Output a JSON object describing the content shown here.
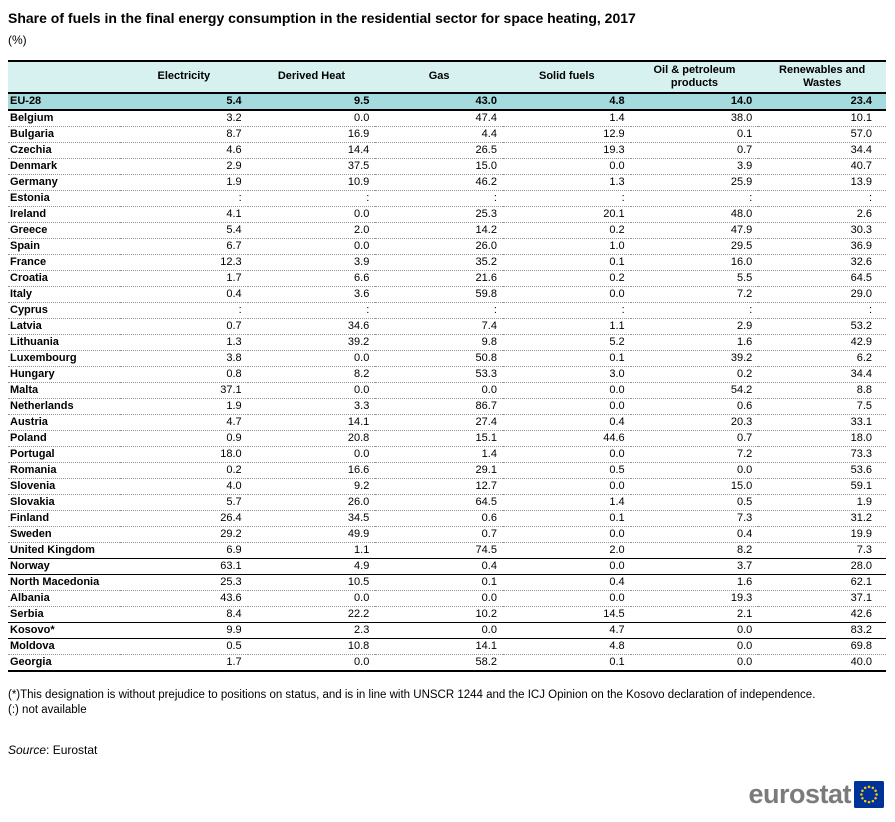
{
  "chart_data": {
    "type": "table",
    "title": "Share of fuels in the final energy consumption in the residential sector for space heating, 2017",
    "unit": "(%)",
    "columns": [
      "Electricity",
      "Derived Heat",
      "Gas",
      "Solid fuels",
      "Oil & petroleum products",
      "Renewables and Wastes"
    ],
    "highlight_row": "EU-28",
    "solid_separator_after": [
      "United Kingdom",
      "Norway",
      "Serbia",
      "Kosovo*"
    ],
    "not_available_symbol": ":",
    "rows": [
      {
        "name": "EU-28",
        "values": [
          "5.4",
          "9.5",
          "43.0",
          "4.8",
          "14.0",
          "23.4"
        ]
      },
      {
        "name": "Belgium",
        "values": [
          "3.2",
          "0.0",
          "47.4",
          "1.4",
          "38.0",
          "10.1"
        ]
      },
      {
        "name": "Bulgaria",
        "values": [
          "8.7",
          "16.9",
          "4.4",
          "12.9",
          "0.1",
          "57.0"
        ]
      },
      {
        "name": "Czechia",
        "values": [
          "4.6",
          "14.4",
          "26.5",
          "19.3",
          "0.7",
          "34.4"
        ]
      },
      {
        "name": "Denmark",
        "values": [
          "2.9",
          "37.5",
          "15.0",
          "0.0",
          "3.9",
          "40.7"
        ]
      },
      {
        "name": "Germany",
        "values": [
          "1.9",
          "10.9",
          "46.2",
          "1.3",
          "25.9",
          "13.9"
        ]
      },
      {
        "name": "Estonia",
        "values": [
          ":",
          ":",
          ":",
          ":",
          ":",
          ":"
        ]
      },
      {
        "name": "Ireland",
        "values": [
          "4.1",
          "0.0",
          "25.3",
          "20.1",
          "48.0",
          "2.6"
        ]
      },
      {
        "name": "Greece",
        "values": [
          "5.4",
          "2.0",
          "14.2",
          "0.2",
          "47.9",
          "30.3"
        ]
      },
      {
        "name": "Spain",
        "values": [
          "6.7",
          "0.0",
          "26.0",
          "1.0",
          "29.5",
          "36.9"
        ]
      },
      {
        "name": "France",
        "values": [
          "12.3",
          "3.9",
          "35.2",
          "0.1",
          "16.0",
          "32.6"
        ]
      },
      {
        "name": "Croatia",
        "values": [
          "1.7",
          "6.6",
          "21.6",
          "0.2",
          "5.5",
          "64.5"
        ]
      },
      {
        "name": "Italy",
        "values": [
          "0.4",
          "3.6",
          "59.8",
          "0.0",
          "7.2",
          "29.0"
        ]
      },
      {
        "name": "Cyprus",
        "values": [
          ":",
          ":",
          ":",
          ":",
          ":",
          ":"
        ]
      },
      {
        "name": "Latvia",
        "values": [
          "0.7",
          "34.6",
          "7.4",
          "1.1",
          "2.9",
          "53.2"
        ]
      },
      {
        "name": "Lithuania",
        "values": [
          "1.3",
          "39.2",
          "9.8",
          "5.2",
          "1.6",
          "42.9"
        ]
      },
      {
        "name": "Luxembourg",
        "values": [
          "3.8",
          "0.0",
          "50.8",
          "0.1",
          "39.2",
          "6.2"
        ]
      },
      {
        "name": "Hungary",
        "values": [
          "0.8",
          "8.2",
          "53.3",
          "3.0",
          "0.2",
          "34.4"
        ]
      },
      {
        "name": "Malta",
        "values": [
          "37.1",
          "0.0",
          "0.0",
          "0.0",
          "54.2",
          "8.8"
        ]
      },
      {
        "name": "Netherlands",
        "values": [
          "1.9",
          "3.3",
          "86.7",
          "0.0",
          "0.6",
          "7.5"
        ]
      },
      {
        "name": "Austria",
        "values": [
          "4.7",
          "14.1",
          "27.4",
          "0.4",
          "20.3",
          "33.1"
        ]
      },
      {
        "name": "Poland",
        "values": [
          "0.9",
          "20.8",
          "15.1",
          "44.6",
          "0.7",
          "18.0"
        ]
      },
      {
        "name": "Portugal",
        "values": [
          "18.0",
          "0.0",
          "1.4",
          "0.0",
          "7.2",
          "73.3"
        ]
      },
      {
        "name": "Romania",
        "values": [
          "0.2",
          "16.6",
          "29.1",
          "0.5",
          "0.0",
          "53.6"
        ]
      },
      {
        "name": "Slovenia",
        "values": [
          "4.0",
          "9.2",
          "12.7",
          "0.0",
          "15.0",
          "59.1"
        ]
      },
      {
        "name": "Slovakia",
        "values": [
          "5.7",
          "26.0",
          "64.5",
          "1.4",
          "0.5",
          "1.9"
        ]
      },
      {
        "name": "Finland",
        "values": [
          "26.4",
          "34.5",
          "0.6",
          "0.1",
          "7.3",
          "31.2"
        ]
      },
      {
        "name": "Sweden",
        "values": [
          "29.2",
          "49.9",
          "0.7",
          "0.0",
          "0.4",
          "19.9"
        ]
      },
      {
        "name": "United Kingdom",
        "values": [
          "6.9",
          "1.1",
          "74.5",
          "2.0",
          "8.2",
          "7.3"
        ]
      },
      {
        "name": "Norway",
        "values": [
          "63.1",
          "4.9",
          "0.4",
          "0.0",
          "3.7",
          "28.0"
        ]
      },
      {
        "name": "North Macedonia",
        "values": [
          "25.3",
          "10.5",
          "0.1",
          "0.4",
          "1.6",
          "62.1"
        ]
      },
      {
        "name": "Albania",
        "values": [
          "43.6",
          "0.0",
          "0.0",
          "0.0",
          "19.3",
          "37.1"
        ]
      },
      {
        "name": "Serbia",
        "values": [
          "8.4",
          "22.2",
          "10.2",
          "14.5",
          "2.1",
          "42.6"
        ]
      },
      {
        "name": "Kosovo*",
        "values": [
          "9.9",
          "2.3",
          "0.0",
          "4.7",
          "0.0",
          "83.2"
        ]
      },
      {
        "name": "Moldova",
        "values": [
          "0.5",
          "10.8",
          "14.1",
          "4.8",
          "0.0",
          "69.8"
        ]
      },
      {
        "name": "Georgia",
        "values": [
          "1.7",
          "0.0",
          "58.2",
          "0.1",
          "0.0",
          "40.0"
        ]
      }
    ]
  },
  "footnotes": [
    "(*)This designation is without prejudice to positions on status, and is in line with UNSCR 1244 and the ICJ Opinion on the Kosovo declaration of independence.",
    "(:) not available"
  ],
  "source": {
    "label": "Source",
    "value": ": Eurostat"
  },
  "logo": {
    "text": "eurostat"
  },
  "colors": {
    "header-bg": "#d7f0f0",
    "highlight-bg": "#a5dbde",
    "dotted-border": "#949494",
    "logo-gray": "#7b7b7b",
    "flag-blue": "#003399",
    "star-yellow": "#ffcc00"
  }
}
